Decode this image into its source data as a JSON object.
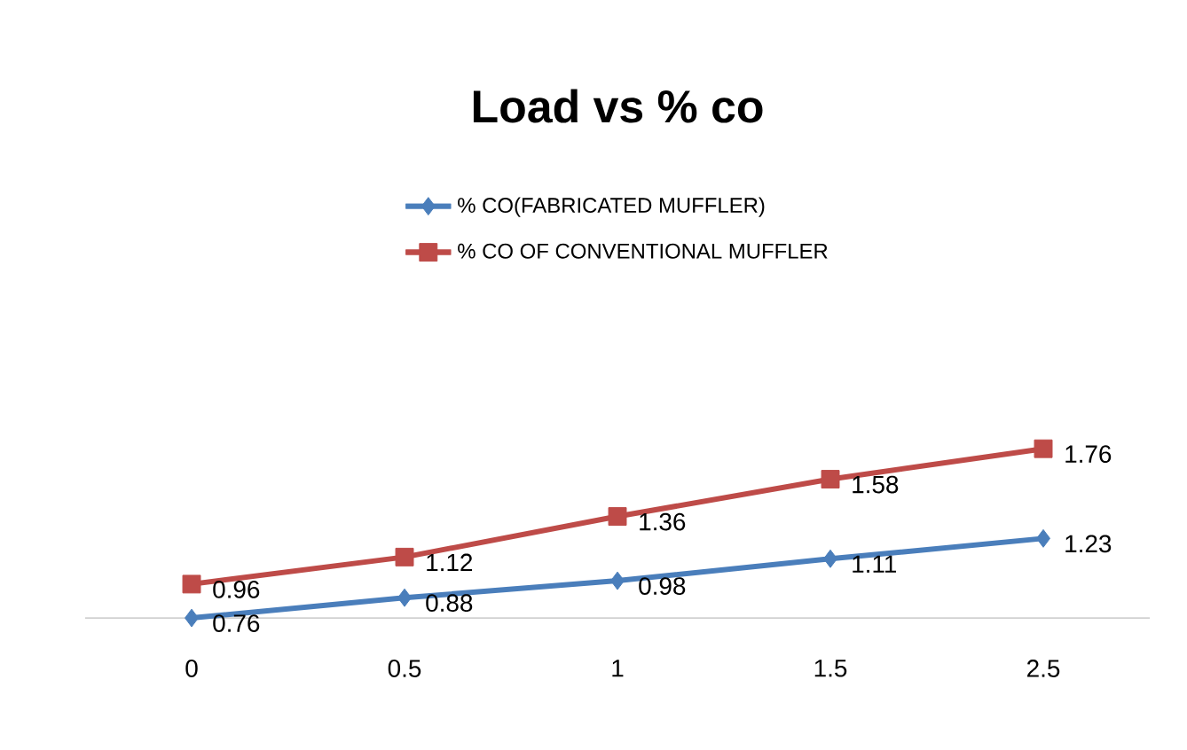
{
  "chart_data": {
    "type": "line",
    "title": "Load vs % co",
    "categories": [
      "0",
      "0.5",
      "1",
      "1.5",
      "2.5"
    ],
    "series": [
      {
        "name": "% CO(FABRICATED MUFFLER)",
        "color": "#4a7ebb",
        "marker": "diamond",
        "values": [
          0.76,
          0.88,
          0.98,
          1.11,
          1.23
        ]
      },
      {
        "name": "% CO OF CONVENTIONAL MUFFLER",
        "color": "#be4b48",
        "marker": "square",
        "values": [
          0.96,
          1.12,
          1.36,
          1.58,
          1.76
        ]
      }
    ],
    "data_labels": true,
    "legend": "top"
  }
}
